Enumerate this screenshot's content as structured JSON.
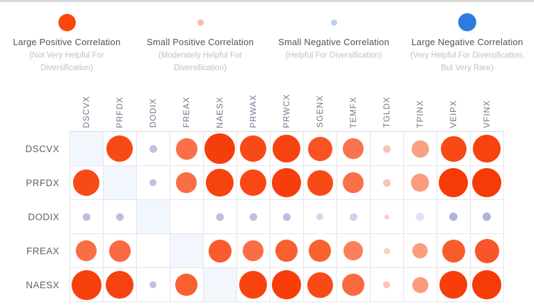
{
  "legend": {
    "items": [
      {
        "label": "Large Positive Correlation",
        "sublabel": "(Not Very Helpful For Diversification)",
        "color": "#fb4708",
        "diameter": 25
      },
      {
        "label": "Small Positive Correlation",
        "sublabel": "(Moderately Helpful For Diversification)",
        "color": "#f9b7a5",
        "diameter": 9
      },
      {
        "label": "Small Negative Correlation",
        "sublabel": "(Helpful For Diversification)",
        "color": "#b8d1f3",
        "diameter": 9
      },
      {
        "label": "Large Negative Correlation",
        "sublabel": "(Very Helpful For Diversification, But Very Rare)",
        "color": "#2e7ce0",
        "diameter": 26
      }
    ]
  },
  "chart_data": {
    "type": "heatmap",
    "subtype": "correlation-bubble-matrix",
    "encoding": "bubble diameter (px) = correlation magnitude; warm colors = positive, blue/lavender = negative; diagonal self-correlation cells shown as shaded empty cells; empty cell = near-zero correlation",
    "columns": [
      "DSCVX",
      "PRFDX",
      "DODIX",
      "FREAX",
      "NAESX",
      "PRWAX",
      "PRWCX",
      "SGENX",
      "TEMFX",
      "TGLDX",
      "TPINX",
      "VEIPX",
      "VFINX"
    ],
    "rows": [
      "DSCVX",
      "PRFDX",
      "DODIX",
      "FREAX",
      "NAESX"
    ],
    "diagonal_bg": "#f2f6fd",
    "cells": [
      [
        "D",
        [
          38,
          "#f84a16"
        ],
        [
          11,
          "#bcc1e4"
        ],
        [
          31,
          "#f97048"
        ],
        [
          44,
          "#f63d0c"
        ],
        [
          38,
          "#f84a16"
        ],
        [
          40,
          "#f7430f"
        ],
        [
          35,
          "#f85322"
        ],
        [
          30,
          "#f9734e"
        ],
        [
          11,
          "#fbc3b1"
        ],
        [
          25,
          "#faa083"
        ],
        [
          37,
          "#f84a16"
        ],
        [
          40,
          "#f7430f"
        ]
      ],
      [
        [
          38,
          "#f84a16"
        ],
        "D",
        [
          10,
          "#bcc1e4"
        ],
        [
          30,
          "#f96e45"
        ],
        [
          40,
          "#f7430f"
        ],
        [
          38,
          "#f84816"
        ],
        [
          42,
          "#f63d0c"
        ],
        [
          37,
          "#f84a16"
        ],
        [
          30,
          "#f97048"
        ],
        [
          11,
          "#fbc3b1"
        ],
        [
          26,
          "#fa9c7e"
        ],
        [
          42,
          "#f63a08"
        ],
        [
          42,
          "#f63a08"
        ]
      ],
      [
        [
          11,
          "#b9bee2"
        ],
        [
          11,
          "#b9bee2"
        ],
        "D",
        null,
        [
          11,
          "#b9bee2"
        ],
        [
          11,
          "#bcc1e4"
        ],
        [
          11,
          "#b9bee2"
        ],
        [
          10,
          "#d2d6ee"
        ],
        [
          11,
          "#ced3ec"
        ],
        [
          7,
          "#f8cfc0"
        ],
        [
          12,
          "#dfe3f4"
        ],
        [
          12,
          "#aeb5dc"
        ],
        [
          12,
          "#aeb5dc"
        ]
      ],
      [
        [
          30,
          "#f96e45"
        ],
        [
          31,
          "#f96a40"
        ],
        null,
        "D",
        [
          33,
          "#f85c2e"
        ],
        [
          30,
          "#f96e45"
        ],
        [
          32,
          "#f8602f"
        ],
        [
          32,
          "#f8622f"
        ],
        [
          28,
          "#fa805d"
        ],
        [
          9,
          "#fbcdbd"
        ],
        [
          22,
          "#fa9d80"
        ],
        [
          33,
          "#f85c2b"
        ],
        [
          35,
          "#f8552a"
        ]
      ],
      [
        [
          43,
          "#f6400c"
        ],
        [
          40,
          "#f7430f"
        ],
        [
          10,
          "#bcc1e4"
        ],
        [
          32,
          "#f8602f"
        ],
        "D",
        [
          40,
          "#f7430f"
        ],
        [
          42,
          "#f63d0a"
        ],
        [
          37,
          "#f84a16"
        ],
        [
          32,
          "#f96a40"
        ],
        [
          10,
          "#fbc3b1"
        ],
        [
          23,
          "#fa9a7b"
        ],
        [
          40,
          "#f63d0a"
        ],
        [
          42,
          "#f63a08"
        ]
      ]
    ]
  }
}
